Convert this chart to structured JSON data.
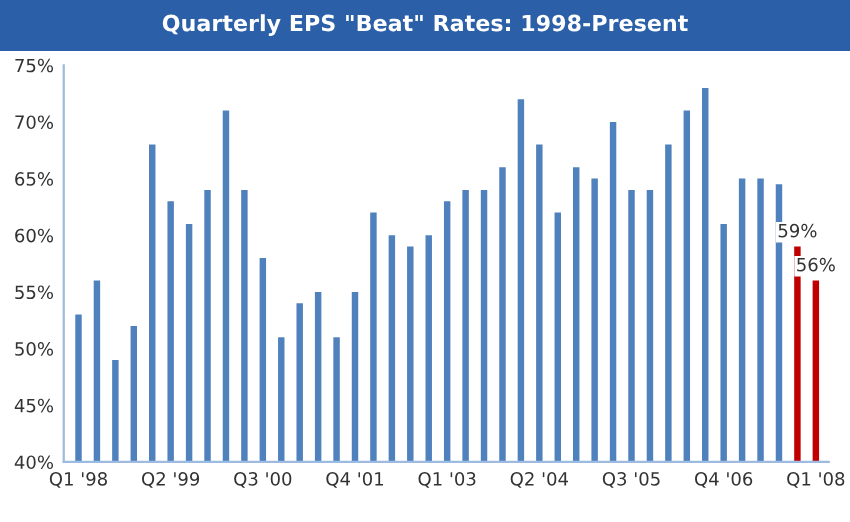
{
  "chart_data": {
    "type": "bar",
    "title": "Quarterly EPS \"Beat\" Rates: 1998-Present",
    "categories": [
      "Q1 '98",
      null,
      null,
      null,
      null,
      "Q2 '99",
      null,
      null,
      null,
      null,
      "Q3 '00",
      null,
      null,
      null,
      null,
      "Q4 '01",
      null,
      null,
      null,
      null,
      "Q1 '03",
      null,
      null,
      null,
      null,
      "Q2 '04",
      null,
      null,
      null,
      null,
      "Q3 '05",
      null,
      null,
      null,
      null,
      "Q4 '06",
      null,
      null,
      null,
      null,
      "Q1 '08"
    ],
    "values": [
      53,
      56,
      49,
      52,
      68,
      63,
      61,
      64,
      71,
      64,
      58,
      51,
      54,
      55,
      51,
      55,
      62,
      60,
      59,
      60,
      63,
      64,
      64,
      66,
      72,
      68,
      62,
      66,
      65,
      70,
      64,
      64,
      68,
      71,
      73,
      61,
      65,
      65,
      64.5,
      59,
      56
    ],
    "colors": [
      "#4f81bd",
      "#4f81bd",
      "#4f81bd",
      "#4f81bd",
      "#4f81bd",
      "#4f81bd",
      "#4f81bd",
      "#4f81bd",
      "#4f81bd",
      "#4f81bd",
      "#4f81bd",
      "#4f81bd",
      "#4f81bd",
      "#4f81bd",
      "#4f81bd",
      "#4f81bd",
      "#4f81bd",
      "#4f81bd",
      "#4f81bd",
      "#4f81bd",
      "#4f81bd",
      "#4f81bd",
      "#4f81bd",
      "#4f81bd",
      "#4f81bd",
      "#4f81bd",
      "#4f81bd",
      "#4f81bd",
      "#4f81bd",
      "#4f81bd",
      "#4f81bd",
      "#4f81bd",
      "#4f81bd",
      "#4f81bd",
      "#4f81bd",
      "#4f81bd",
      "#4f81bd",
      "#4f81bd",
      "#4f81bd",
      "#c00000",
      "#c00000"
    ],
    "value_labels": [
      null,
      null,
      null,
      null,
      null,
      null,
      null,
      null,
      null,
      null,
      null,
      null,
      null,
      null,
      null,
      null,
      null,
      null,
      null,
      null,
      null,
      null,
      null,
      null,
      null,
      null,
      null,
      null,
      null,
      null,
      null,
      null,
      null,
      null,
      null,
      null,
      null,
      null,
      null,
      "59%",
      "56%"
    ],
    "ylim": [
      40,
      75
    ],
    "yticks": [
      {
        "value": 40,
        "label": "40%"
      },
      {
        "value": 45,
        "label": "45%"
      },
      {
        "value": 50,
        "label": "50%"
      },
      {
        "value": 55,
        "label": "55%"
      },
      {
        "value": 60,
        "label": "60%"
      },
      {
        "value": 65,
        "label": "65%"
      },
      {
        "value": 70,
        "label": "70%"
      },
      {
        "value": 75,
        "label": "75%"
      }
    ],
    "grid": false
  }
}
